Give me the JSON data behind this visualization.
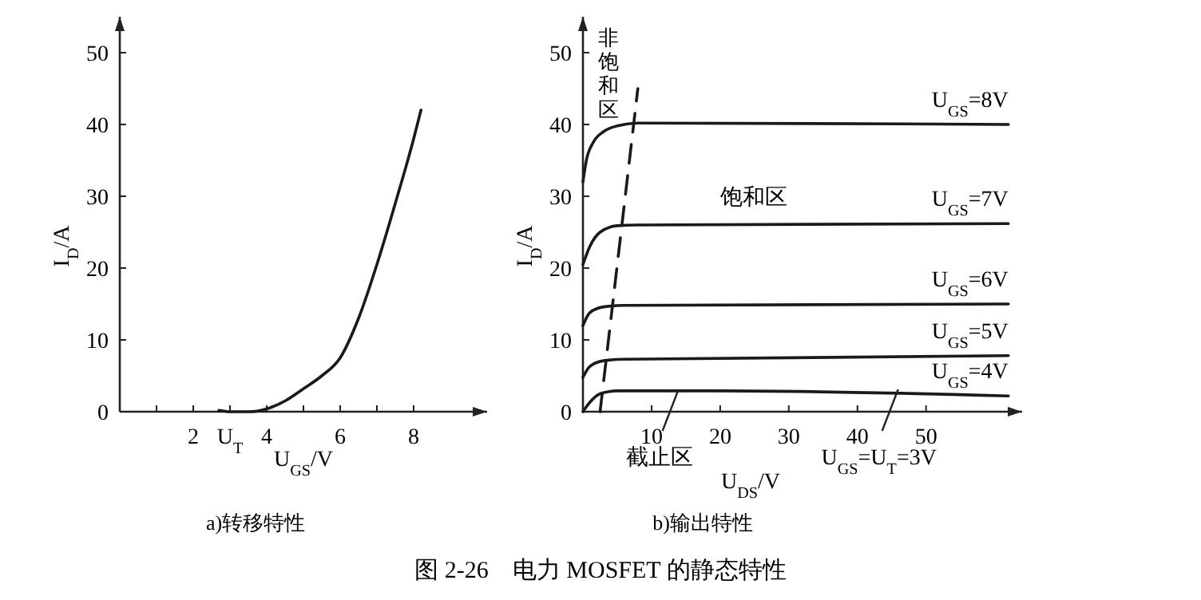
{
  "chart_data": [
    {
      "type": "line",
      "title": "a)转移特性",
      "xlabel": "U$_{GS}$/V",
      "ylabel": "I$_{D}$/A",
      "xlim": [
        0,
        10
      ],
      "ylim": [
        0,
        55
      ],
      "line_style": "solid",
      "xticks": [
        {
          "value": 1,
          "label": null
        },
        2,
        {
          "value": 3,
          "label": "U$_{T}$"
        },
        4,
        {
          "value": 5,
          "label": null
        },
        6,
        {
          "value": 7,
          "label": null
        },
        8
      ],
      "yticks": [
        {
          "value": 0,
          "label": "0"
        },
        10,
        20,
        30,
        40,
        50
      ],
      "series": [
        {
          "color": "#1a1a1a",
          "x": [
            2.7,
            3,
            3.5,
            4,
            4.5,
            5,
            5.5,
            6,
            6.5,
            7,
            7.5,
            8,
            8.2
          ],
          "values": [
            0.2,
            0,
            0,
            0.4,
            1.5,
            3.2,
            5,
            7.5,
            13,
            20.5,
            29,
            38,
            42
          ]
        }
      ],
      "annotations": [
        "图 2-26　电力 MOSFET 的静态特性"
      ]
    },
    {
      "type": "line",
      "title": "b)输出特性",
      "xlabel": "U$_{DS}$/V",
      "ylabel": "I$_{D}$/A",
      "xlim": [
        0,
        64
      ],
      "ylim": [
        0,
        55
      ],
      "line_style": "solid",
      "xticks": [
        10,
        20,
        30,
        40,
        50
      ],
      "yticks": [
        {
          "value": 0,
          "label": "0"
        },
        10,
        20,
        30,
        40,
        50
      ],
      "series": [
        {
          "name": "U$_{GS}$=8V",
          "color": "#1a1a1a",
          "x": [
            0,
            0.5,
            1.5,
            3,
            5,
            8,
            62
          ],
          "values": [
            32,
            35,
            37.5,
            39,
            39.8,
            40.2,
            40
          ]
        },
        {
          "name": "U$_{GS}$=7V",
          "color": "#1a1a1a",
          "x": [
            0,
            1,
            2.5,
            5,
            8,
            62
          ],
          "values": [
            20.5,
            23,
            25,
            25.9,
            26,
            26.2
          ]
        },
        {
          "name": "U$_{GS}$=6V",
          "color": "#1a1a1a",
          "x": [
            0,
            1,
            3,
            6,
            62
          ],
          "values": [
            12,
            13.8,
            14.6,
            14.8,
            15
          ]
        },
        {
          "name": "U$_{GS}$=5V",
          "color": "#1a1a1a",
          "x": [
            0,
            1,
            3,
            6,
            62
          ],
          "values": [
            4.8,
            6.3,
            7.1,
            7.3,
            7.8
          ]
        },
        {
          "name": "U$_{GS}$=4V",
          "color": "#1a1a1a",
          "x": [
            0,
            1,
            2.5,
            5,
            20,
            62
          ],
          "values": [
            0,
            1.3,
            2.5,
            2.9,
            2.9,
            2.2
          ]
        },
        {
          "type": "line",
          "line_style": "dashed",
          "color": "#1a1a1a",
          "x": [
            2.5,
            8
          ],
          "values": [
            0,
            45
          ]
        }
      ],
      "annotations": [
        "非饱和区",
        "饱和区",
        {
          "text": "截止区",
          "x": 13,
          "y": 0
        },
        {
          "text": "U$_{GS}$=U$_{T}$=3V",
          "x": 45,
          "y": 0
        }
      ]
    }
  ]
}
